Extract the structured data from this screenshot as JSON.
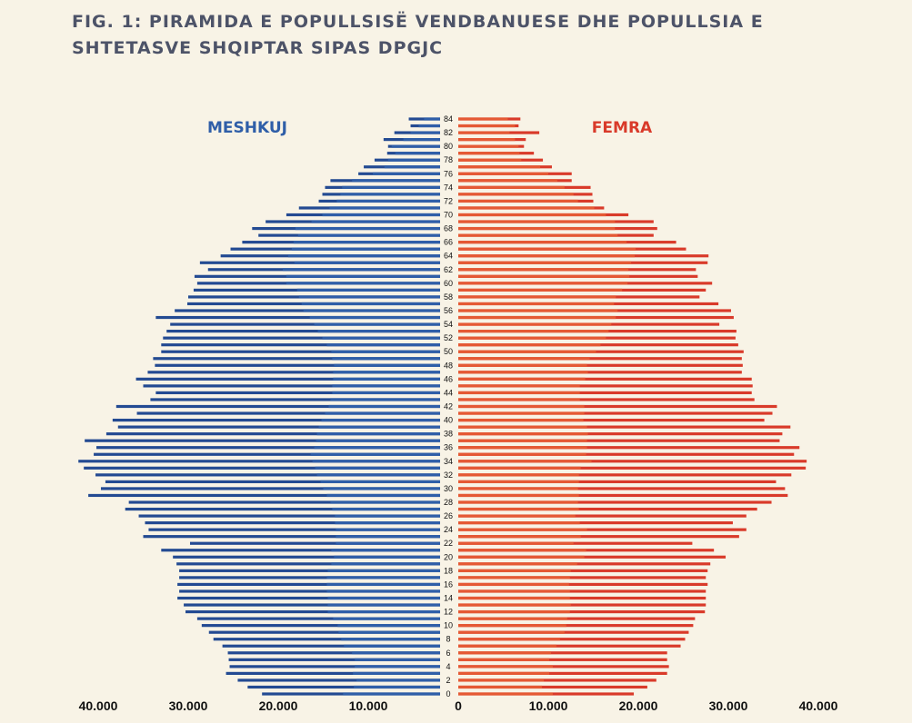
{
  "chart_data": {
    "type": "bar",
    "title": "FIG. 1:  PIRAMIDA E POPULLSISË VENDBANUESE DHE POPULLSIA E SHTETASVE SHQIPTAR SIPAS DPGJC",
    "legend": {
      "left": "MESHKUJ",
      "right": "FEMRA"
    },
    "x_ticks": [
      "40.000",
      "30.000",
      "20.000",
      "10.000",
      "0",
      "10.000",
      "20.000",
      "30.000",
      "40.000"
    ],
    "x_tick_values": [
      -40000,
      -30000,
      -20000,
      -10000,
      0,
      10000,
      20000,
      30000,
      40000
    ],
    "xlim": [
      -42000,
      42000
    ],
    "ages": [
      0,
      1,
      2,
      3,
      4,
      5,
      6,
      7,
      8,
      9,
      10,
      11,
      12,
      13,
      14,
      15,
      16,
      17,
      18,
      19,
      20,
      21,
      22,
      23,
      24,
      25,
      26,
      27,
      28,
      29,
      30,
      31,
      32,
      33,
      34,
      35,
      36,
      37,
      38,
      39,
      40,
      41,
      42,
      43,
      44,
      45,
      46,
      47,
      48,
      49,
      50,
      51,
      52,
      53,
      54,
      55,
      56,
      57,
      58,
      59,
      60,
      61,
      62,
      63,
      64,
      65,
      66,
      67,
      68,
      69,
      70,
      71,
      72,
      73,
      74,
      75,
      76,
      77,
      78,
      79,
      80,
      81,
      82,
      83,
      84
    ],
    "age_labels": [
      "0",
      "",
      "2",
      "",
      "4",
      "",
      "6",
      "",
      "8",
      "",
      "10",
      "",
      "12",
      "",
      "14",
      "",
      "16",
      "",
      "18",
      "",
      "20",
      "",
      "22",
      "",
      "24",
      "",
      "26",
      "",
      "28",
      "",
      "30",
      "",
      "32",
      "",
      "34",
      "",
      "36",
      "",
      "38",
      "",
      "40",
      "",
      "42",
      "",
      "44",
      "",
      "46",
      "",
      "48",
      "",
      "50",
      "",
      "52",
      "",
      "54",
      "",
      "56",
      "",
      "58",
      "",
      "60",
      "",
      "62",
      "",
      "64",
      "",
      "66",
      "",
      "68",
      "",
      "70",
      "",
      "72",
      "",
      "74",
      "",
      "76",
      "",
      "78",
      "",
      "80",
      "",
      "82",
      "",
      "84"
    ],
    "series": [
      {
        "name": "MESHKUJ",
        "subseries": "dpgjc",
        "color": "#234a92",
        "values": [
          21800,
          23400,
          24500,
          25800,
          25400,
          25500,
          25600,
          26200,
          27200,
          27700,
          28500,
          29000,
          30300,
          30500,
          31200,
          31000,
          31200,
          31000,
          31000,
          31300,
          31700,
          33000,
          29800,
          35000,
          34400,
          34800,
          35500,
          37000,
          36600,
          41100,
          39700,
          39200,
          40300,
          41600,
          42200,
          40500,
          40200,
          41500,
          39100,
          37800,
          38400,
          35700,
          38000,
          34200,
          33600,
          35000,
          35800,
          34500,
          33700,
          33900,
          33000,
          33000,
          32800,
          32400,
          32000,
          33600,
          31500,
          30100,
          30000,
          29400,
          29000,
          29300,
          27800,
          28700,
          26400,
          25300,
          24000,
          22200,
          22900,
          21400,
          19100,
          17700,
          15500,
          15100,
          14800,
          14200,
          11100,
          10500,
          9300,
          7900,
          7800,
          8300,
          7100,
          5300,
          5500
        ]
      },
      {
        "name": "MESHKUJ",
        "subseries": "vendbanuese",
        "color": "#2f5ea8",
        "values": [
          12800,
          11600,
          11300,
          11700,
          11500,
          11500,
          11800,
          12700,
          13000,
          13300,
          13400,
          13900,
          14500,
          14500,
          14500,
          14600,
          14600,
          14600,
          14500,
          14100,
          13800,
          14100,
          13600,
          13600,
          13600,
          13700,
          13700,
          14000,
          14200,
          14600,
          15000,
          15300,
          15700,
          15900,
          16200,
          16400,
          16000,
          15800,
          15700,
          15500,
          15200,
          14800,
          14400,
          14200,
          14000,
          14000,
          13900,
          13900,
          13800,
          14000,
          14100,
          14600,
          15100,
          15600,
          16000,
          16500,
          17200,
          17400,
          17700,
          17900,
          19100,
          19100,
          19500,
          18200,
          18900,
          18500,
          18300,
          17800,
          18100,
          16300,
          15100,
          14300,
          13500,
          13100,
          12900,
          11800,
          9500,
          8200,
          7800,
          7000,
          7400,
          6100,
          5300,
          4400,
          3800
        ]
      },
      {
        "name": "FEMRA",
        "subseries": "dpgjc",
        "color": "#d93a2a",
        "values": [
          19500,
          21000,
          22000,
          23200,
          23400,
          23200,
          23200,
          24700,
          25200,
          25600,
          26100,
          26300,
          27400,
          27500,
          27500,
          27500,
          27700,
          27500,
          27700,
          28000,
          29700,
          28400,
          26000,
          31200,
          32000,
          30500,
          32000,
          33200,
          34800,
          36600,
          36300,
          35300,
          37000,
          38600,
          38700,
          37300,
          37900,
          35700,
          36000,
          36900,
          34000,
          34900,
          35400,
          32900,
          32600,
          32700,
          32600,
          31500,
          31600,
          31500,
          31700,
          31100,
          30800,
          30900,
          29000,
          30600,
          30300,
          28900,
          26800,
          27500,
          28200,
          26600,
          26400,
          27700,
          27800,
          25300,
          24200,
          21700,
          22100,
          21700,
          18900,
          16200,
          15000,
          14900,
          14700,
          12600,
          12600,
          10400,
          9400,
          8400,
          7300,
          7500,
          9000,
          6700,
          6900
        ]
      },
      {
        "name": "FEMRA",
        "subseries": "vendbanuese",
        "color": "#e55934",
        "values": [
          10500,
          9300,
          9500,
          10100,
          10500,
          10100,
          10300,
          10900,
          11300,
          11800,
          12000,
          12100,
          12400,
          12500,
          12400,
          12400,
          12300,
          12400,
          12500,
          13200,
          14000,
          14200,
          12800,
          13600,
          14300,
          13500,
          13000,
          13400,
          13300,
          13400,
          13300,
          13400,
          13400,
          13600,
          14800,
          14200,
          14300,
          14300,
          14400,
          14300,
          13900,
          14000,
          14000,
          13500,
          13500,
          13500,
          14100,
          14400,
          14300,
          14600,
          15300,
          15800,
          16400,
          16700,
          17000,
          17500,
          17700,
          17300,
          17500,
          18200,
          18800,
          19000,
          18900,
          19200,
          19600,
          19700,
          18700,
          17700,
          17400,
          17400,
          16400,
          15100,
          13300,
          12800,
          11800,
          11000,
          10000,
          9100,
          7000,
          6800,
          6700,
          6300,
          5700,
          6300,
          5500
        ]
      }
    ]
  }
}
